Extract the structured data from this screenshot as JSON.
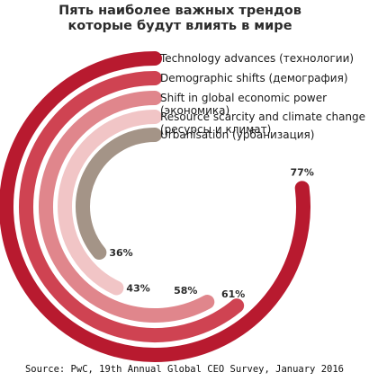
{
  "chart_data": {
    "type": "radial-bar",
    "title_lines": [
      "Пять наиболее важных трендов",
      "которые будут влиять в мире"
    ],
    "series": [
      {
        "name": "Technology advances (технологии)",
        "value": 77,
        "value_label": "77%",
        "color": "#b81a2f"
      },
      {
        "name": "Demographic shifts (демография)",
        "value": 61,
        "value_label": "61%",
        "color": "#cf4352"
      },
      {
        "name": "Shift in global economic power (экономика)",
        "value": 58,
        "value_label": "58%",
        "color": "#e0868c"
      },
      {
        "name": "Resource scarcity and climate change (ресурсы и климат)",
        "value": 43,
        "value_label": "43%",
        "color": "#f1c5c6"
      },
      {
        "name": "Urbanisation (урбанизация)",
        "value": 36,
        "value_label": "36%",
        "color": "#a49487"
      }
    ],
    "legend_lines": [
      [
        "Technology advances (технологии)"
      ],
      [
        "Demographic shifts (демография)"
      ],
      [
        "Shift in global economic power",
        "(экономика)"
      ],
      [
        "Resource scarcity and climate change",
        "(ресурсы и климат)"
      ],
      [
        "Urbanisation (урбанизация)"
      ]
    ],
    "source": "Source: PwC, 19th Annual Global CEO Survey, January 2016"
  }
}
